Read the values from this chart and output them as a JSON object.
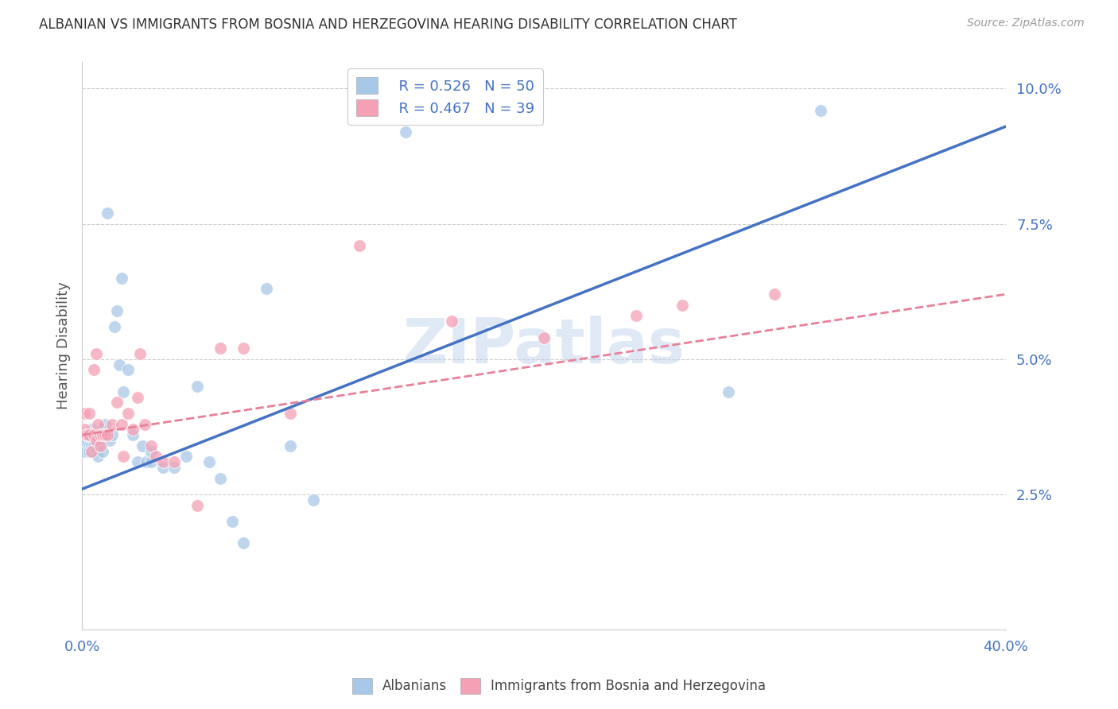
{
  "title": "ALBANIAN VS IMMIGRANTS FROM BOSNIA AND HERZEGOVINA HEARING DISABILITY CORRELATION CHART",
  "source": "Source: ZipAtlas.com",
  "ylabel": "Hearing Disability",
  "xlim": [
    0.0,
    0.4
  ],
  "ylim": [
    0.0,
    0.105
  ],
  "yticks": [
    0.025,
    0.05,
    0.075,
    0.1
  ],
  "ytick_labels": [
    "2.5%",
    "5.0%",
    "7.5%",
    "10.0%"
  ],
  "xticks": [
    0.0,
    0.1,
    0.2,
    0.3,
    0.4
  ],
  "xtick_labels": [
    "0.0%",
    "",
    "",
    "",
    "40.0%"
  ],
  "albanians_color": "#a8c8e8",
  "bosnians_color": "#f4a0b5",
  "legend_r_albanian": "R = 0.526",
  "legend_n_albanian": "N = 50",
  "legend_r_bosnian": "R = 0.467",
  "legend_n_bosnian": "N = 39",
  "alb_line_x0": 0.0,
  "alb_line_y0": 0.026,
  "alb_line_x1": 0.4,
  "alb_line_y1": 0.093,
  "bos_line_x0": 0.0,
  "bos_line_y0": 0.036,
  "bos_line_x1": 0.4,
  "bos_line_y1": 0.062,
  "albanian_x": [
    0.001,
    0.001,
    0.002,
    0.003,
    0.003,
    0.003,
    0.004,
    0.004,
    0.005,
    0.005,
    0.005,
    0.006,
    0.006,
    0.007,
    0.007,
    0.008,
    0.008,
    0.009,
    0.009,
    0.01,
    0.01,
    0.011,
    0.012,
    0.013,
    0.014,
    0.015,
    0.016,
    0.017,
    0.018,
    0.02,
    0.022,
    0.024,
    0.026,
    0.028,
    0.03,
    0.03,
    0.035,
    0.04,
    0.045,
    0.05,
    0.055,
    0.06,
    0.065,
    0.07,
    0.08,
    0.09,
    0.1,
    0.14,
    0.28,
    0.32
  ],
  "albanian_y": [
    0.033,
    0.035,
    0.036,
    0.034,
    0.036,
    0.033,
    0.037,
    0.034,
    0.035,
    0.036,
    0.034,
    0.035,
    0.033,
    0.032,
    0.036,
    0.035,
    0.034,
    0.033,
    0.037,
    0.036,
    0.038,
    0.077,
    0.035,
    0.036,
    0.056,
    0.059,
    0.049,
    0.065,
    0.044,
    0.048,
    0.036,
    0.031,
    0.034,
    0.031,
    0.031,
    0.033,
    0.03,
    0.03,
    0.032,
    0.045,
    0.031,
    0.028,
    0.02,
    0.016,
    0.063,
    0.034,
    0.024,
    0.092,
    0.044,
    0.096
  ],
  "bosnian_x": [
    0.001,
    0.001,
    0.002,
    0.003,
    0.003,
    0.004,
    0.005,
    0.005,
    0.006,
    0.006,
    0.007,
    0.008,
    0.008,
    0.009,
    0.01,
    0.011,
    0.013,
    0.015,
    0.017,
    0.018,
    0.02,
    0.022,
    0.024,
    0.025,
    0.027,
    0.03,
    0.032,
    0.035,
    0.04,
    0.05,
    0.06,
    0.07,
    0.09,
    0.12,
    0.16,
    0.2,
    0.24,
    0.26,
    0.3
  ],
  "bosnian_y": [
    0.037,
    0.04,
    0.036,
    0.036,
    0.04,
    0.033,
    0.048,
    0.036,
    0.035,
    0.051,
    0.038,
    0.034,
    0.036,
    0.036,
    0.036,
    0.036,
    0.038,
    0.042,
    0.038,
    0.032,
    0.04,
    0.037,
    0.043,
    0.051,
    0.038,
    0.034,
    0.032,
    0.031,
    0.031,
    0.023,
    0.052,
    0.052,
    0.04,
    0.071,
    0.057,
    0.054,
    0.058,
    0.06,
    0.062
  ],
  "watermark": "ZIPatlas",
  "line_blue": "#4472c4",
  "line_pink": "#e8809a"
}
